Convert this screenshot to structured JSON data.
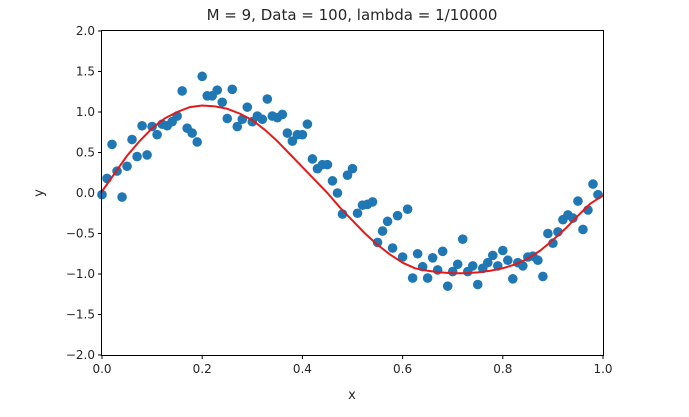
{
  "chart_data": {
    "type": "scatter",
    "title": "M = 9, Data = 100, lambda =  1/10000",
    "xlabel": "x",
    "ylabel": "y",
    "xlim": [
      0.0,
      1.0
    ],
    "ylim": [
      -2.0,
      2.0
    ],
    "xticks": [
      "0.0",
      "0.2",
      "0.4",
      "0.6",
      "0.8",
      "1.0"
    ],
    "yticks": [
      "−2.0",
      "−1.5",
      "−1.0",
      "−0.5",
      "0.0",
      "0.5",
      "1.0",
      "1.5",
      "2.0"
    ],
    "grid": false,
    "colors": {
      "points": "#1f77b4",
      "fit": "#e31a1c"
    },
    "series": [
      {
        "type": "scatter",
        "x": [
          0.0,
          0.01,
          0.02,
          0.03,
          0.04,
          0.05,
          0.06,
          0.07,
          0.08,
          0.09,
          0.1,
          0.11,
          0.12,
          0.13,
          0.14,
          0.15,
          0.16,
          0.17,
          0.18,
          0.19,
          0.2,
          0.21,
          0.22,
          0.23,
          0.24,
          0.25,
          0.26,
          0.27,
          0.28,
          0.29,
          0.3,
          0.31,
          0.32,
          0.33,
          0.34,
          0.35,
          0.36,
          0.37,
          0.38,
          0.39,
          0.4,
          0.41,
          0.42,
          0.43,
          0.44,
          0.45,
          0.46,
          0.47,
          0.48,
          0.49,
          0.5,
          0.51,
          0.52,
          0.53,
          0.54,
          0.55,
          0.56,
          0.57,
          0.58,
          0.59,
          0.6,
          0.61,
          0.62,
          0.63,
          0.64,
          0.65,
          0.66,
          0.67,
          0.68,
          0.69,
          0.7,
          0.71,
          0.72,
          0.73,
          0.74,
          0.75,
          0.76,
          0.77,
          0.78,
          0.79,
          0.8,
          0.81,
          0.82,
          0.83,
          0.84,
          0.85,
          0.86,
          0.87,
          0.88,
          0.89,
          0.9,
          0.91,
          0.92,
          0.93,
          0.94,
          0.95,
          0.96,
          0.97,
          0.98,
          0.99
        ],
        "y": [
          -0.02,
          0.18,
          0.6,
          0.27,
          -0.05,
          0.33,
          0.66,
          0.45,
          0.83,
          0.47,
          0.82,
          0.72,
          0.85,
          0.83,
          0.88,
          0.95,
          1.26,
          0.8,
          0.74,
          0.63,
          1.44,
          1.2,
          1.2,
          1.27,
          1.12,
          0.92,
          1.28,
          0.82,
          0.91,
          1.06,
          0.88,
          0.95,
          0.91,
          1.16,
          0.95,
          0.93,
          0.97,
          0.74,
          0.64,
          0.72,
          0.72,
          0.85,
          0.42,
          0.3,
          0.35,
          0.35,
          0.15,
          0.0,
          -0.26,
          0.22,
          0.3,
          -0.25,
          -0.15,
          -0.14,
          -0.11,
          -0.61,
          -0.47,
          -0.35,
          -0.68,
          -0.28,
          -0.79,
          -0.2,
          -1.05,
          -0.75,
          -0.91,
          -1.05,
          -0.8,
          -0.95,
          -0.72,
          -1.15,
          -0.97,
          -0.88,
          -0.57,
          -0.97,
          -0.9,
          -1.13,
          -0.93,
          -0.86,
          -0.77,
          -0.9,
          -0.71,
          -0.83,
          -1.06,
          -0.86,
          -0.9,
          -0.79,
          -0.78,
          -0.83,
          -1.03,
          -0.5,
          -0.62,
          -0.48,
          -0.33,
          -0.27,
          -0.31,
          -0.1,
          -0.45,
          -0.21,
          0.11,
          -0.02
        ]
      },
      {
        "type": "line",
        "x": [
          0.0,
          0.025,
          0.05,
          0.075,
          0.1,
          0.125,
          0.15,
          0.175,
          0.2,
          0.225,
          0.25,
          0.275,
          0.3,
          0.325,
          0.35,
          0.375,
          0.4,
          0.425,
          0.45,
          0.475,
          0.5,
          0.525,
          0.55,
          0.575,
          0.6,
          0.625,
          0.65,
          0.675,
          0.7,
          0.725,
          0.75,
          0.775,
          0.8,
          0.825,
          0.85,
          0.875,
          0.9,
          0.925,
          0.95,
          0.975,
          1.0
        ],
        "y": [
          0.02,
          0.24,
          0.46,
          0.64,
          0.8,
          0.92,
          1.0,
          1.06,
          1.08,
          1.07,
          1.04,
          0.98,
          0.9,
          0.78,
          0.64,
          0.48,
          0.32,
          0.16,
          0.0,
          -0.18,
          -0.34,
          -0.5,
          -0.64,
          -0.76,
          -0.86,
          -0.93,
          -0.96,
          -0.98,
          -0.99,
          -0.99,
          -0.98,
          -0.96,
          -0.93,
          -0.88,
          -0.81,
          -0.71,
          -0.58,
          -0.44,
          -0.28,
          -0.13,
          -0.03
        ]
      }
    ]
  }
}
